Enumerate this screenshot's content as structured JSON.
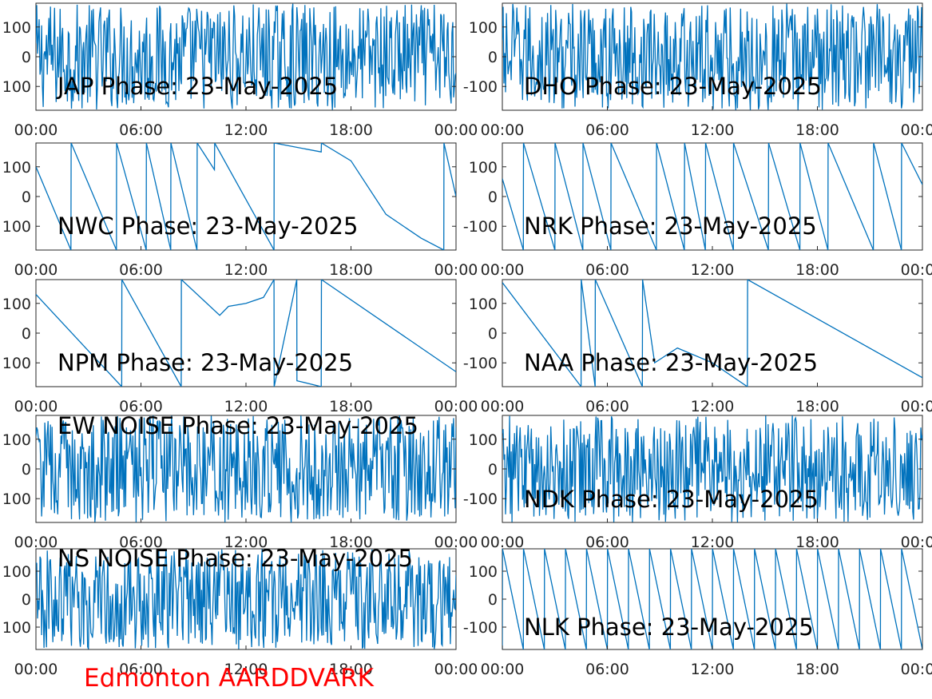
{
  "footer": {
    "text": "Edmonton AARDDVARK",
    "color": "#ff0000"
  },
  "line_color": "#0072bd",
  "chart_data": [
    {
      "type": "line",
      "title": "JAP Phase: 23-May-2025",
      "signal": "noise",
      "x_ticks": [
        "00:00",
        "06:00",
        "12:00",
        "18:00",
        "00:00"
      ],
      "y_ticks": [
        "100",
        "0",
        "100"
      ],
      "ylim": [
        -180,
        180
      ],
      "x": [],
      "y": []
    },
    {
      "type": "line",
      "title": "DHO Phase: 23-May-2025",
      "signal": "noise",
      "x_ticks": [
        "00:00",
        "06:00",
        "12:00",
        "18:00",
        "00:00"
      ],
      "y_ticks": [
        "100",
        "0",
        "-100"
      ],
      "ylim": [
        -180,
        180
      ],
      "x": [],
      "y": []
    },
    {
      "type": "line",
      "title": "NWC Phase: 23-May-2025",
      "signal": "wrapped",
      "x_ticks": [
        "00:00",
        "06:00",
        "12:00",
        "18:00",
        "00:00"
      ],
      "y_ticks": [
        "100",
        "0",
        "100"
      ],
      "ylim": [
        -180,
        180
      ],
      "x": [
        0,
        2,
        2.01,
        4.6,
        4.61,
        6.3,
        6.31,
        7.7,
        7.71,
        9.2,
        9.21,
        10.2,
        10.21,
        13.6,
        13.61,
        16.3,
        16.31,
        18,
        20,
        22,
        23.3,
        23.31,
        24
      ],
      "y": [
        100,
        -180,
        180,
        -180,
        180,
        -180,
        180,
        -180,
        180,
        -180,
        180,
        90,
        180,
        -180,
        180,
        150,
        180,
        120,
        -60,
        -140,
        -180,
        180,
        0
      ]
    },
    {
      "type": "line",
      "title": "NRK Phase: 23-May-2025",
      "signal": "wrapped",
      "x_ticks": [
        "00:00",
        "06:00",
        "12:00",
        "18:00",
        "00:00"
      ],
      "y_ticks": [
        "100",
        "0",
        "-100"
      ],
      "ylim": [
        -180,
        180
      ],
      "x": [
        0,
        1.2,
        1.21,
        3,
        3.01,
        4.6,
        4.61,
        6.2,
        6.21,
        8.8,
        8.81,
        10.4,
        10.41,
        11.6,
        11.61,
        13.2,
        13.21,
        15.2,
        15.21,
        17,
        17.01,
        18.6,
        18.61,
        21.2,
        21.21,
        22.8,
        22.81,
        24
      ],
      "y": [
        60,
        -180,
        180,
        -180,
        180,
        -180,
        180,
        -180,
        180,
        -180,
        180,
        -180,
        180,
        -180,
        180,
        -180,
        180,
        -180,
        180,
        -180,
        180,
        -180,
        180,
        -180,
        180,
        -180,
        180,
        40
      ]
    },
    {
      "type": "line",
      "title": "NPM Phase: 23-May-2025",
      "signal": "wrapped",
      "x_ticks": [
        "00:00",
        "06:00",
        "12:00",
        "18:00",
        "00:00"
      ],
      "y_ticks": [
        "100",
        "0",
        "100"
      ],
      "ylim": [
        -180,
        180
      ],
      "x": [
        0,
        4.9,
        4.91,
        8.3,
        8.31,
        10.5,
        11,
        12,
        13,
        13.6,
        13.61,
        14.9,
        14.91,
        16.3,
        16.31,
        24
      ],
      "y": [
        130,
        -180,
        180,
        -180,
        180,
        60,
        90,
        100,
        120,
        180,
        -180,
        180,
        -160,
        -180,
        180,
        -130
      ]
    },
    {
      "type": "line",
      "title": "NAA Phase: 23-May-2025",
      "signal": "wrapped",
      "x_ticks": [
        "00:00",
        "06:00",
        "12:00",
        "18:00",
        "00:00"
      ],
      "y_ticks": [
        "100",
        "0",
        "-100"
      ],
      "ylim": [
        -180,
        180
      ],
      "x": [
        0,
        4.5,
        4.51,
        5.3,
        5.31,
        8,
        8.01,
        8.7,
        10,
        12,
        14,
        14.01,
        24
      ],
      "y": [
        170,
        -180,
        180,
        -180,
        180,
        -180,
        180,
        -100,
        -50,
        -100,
        -180,
        180,
        -150
      ]
    },
    {
      "type": "line",
      "title": "EW NOISE Phase: 23-May-2025",
      "signal": "noise",
      "x_ticks": [
        "00:00",
        "06:00",
        "12:00",
        "18:00",
        "00:00"
      ],
      "y_ticks": [
        "100",
        "0",
        "100"
      ],
      "ylim": [
        -180,
        180
      ],
      "x": [],
      "y": []
    },
    {
      "type": "line",
      "title": "NDK Phase: 23-May-2025",
      "signal": "noise",
      "x_ticks": [
        "00:00",
        "06:00",
        "12:00",
        "18:00",
        "00:00"
      ],
      "y_ticks": [
        "100",
        "0",
        "-100"
      ],
      "ylim": [
        -180,
        180
      ],
      "x": [],
      "y": []
    },
    {
      "type": "line",
      "title": "NS NOISE Phase: 23-May-2025",
      "signal": "noise",
      "x_ticks": [
        "00:00",
        "06:00",
        "12:00",
        "18:00",
        "00:00"
      ],
      "y_ticks": [
        "100",
        "0",
        "100"
      ],
      "ylim": [
        -180,
        180
      ],
      "x": [],
      "y": []
    },
    {
      "type": "line",
      "title": "NLK Phase: 23-May-2025",
      "signal": "sawtooth",
      "x_ticks": [
        "00:00",
        "06:00",
        "12:00",
        "18:00",
        "00:00"
      ],
      "y_ticks": [
        "100",
        "0",
        "-100"
      ],
      "ylim": [
        -180,
        180
      ],
      "x": [
        0,
        0.01,
        1.2,
        1.21,
        2.4,
        2.41,
        3.6,
        3.61,
        4.8,
        4.81,
        6,
        6.01,
        7.2,
        7.21,
        8.4,
        8.41,
        9.6,
        9.61,
        10.8,
        10.81,
        12,
        12.01,
        13.2,
        13.21,
        14.4,
        14.41,
        15.6,
        15.61,
        16.8,
        16.81,
        18,
        18.01,
        19.2,
        19.21,
        20.4,
        20.41,
        21.6,
        21.61,
        22.8,
        22.81,
        24
      ],
      "y": [
        -180,
        180,
        -180,
        180,
        -180,
        180,
        -180,
        180,
        -180,
        180,
        -180,
        180,
        -180,
        180,
        -180,
        180,
        -180,
        180,
        -180,
        180,
        -180,
        180,
        -180,
        180,
        -180,
        180,
        -180,
        180,
        -180,
        180,
        -180,
        180,
        -180,
        180,
        -180,
        180,
        -180,
        180,
        -180,
        180,
        -180
      ]
    }
  ]
}
